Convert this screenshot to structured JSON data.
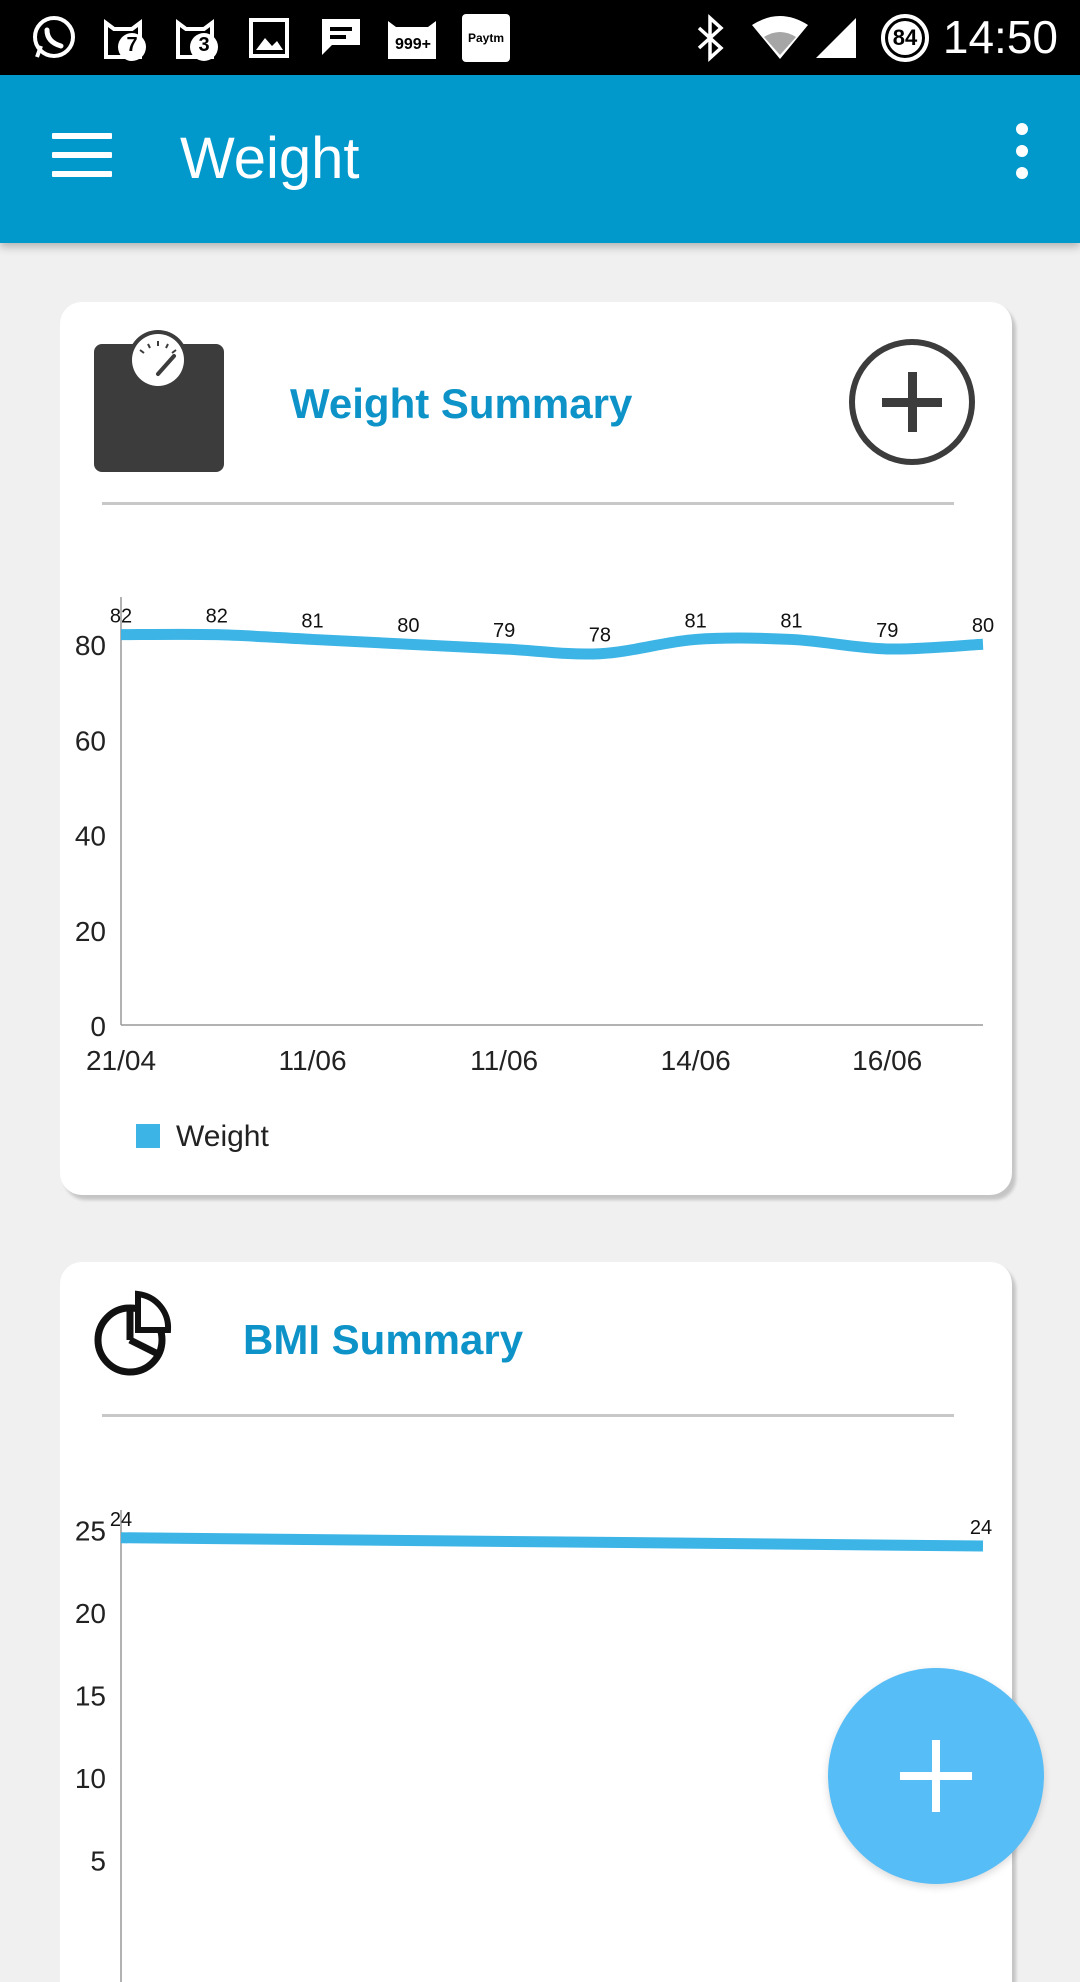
{
  "status_bar": {
    "time": "14:50",
    "notification_badges": [
      "7",
      "3",
      "999+"
    ],
    "paytm_label": "Paytm",
    "battery_level": "84",
    "icons": [
      "whatsapp-icon",
      "cat-app-icon",
      "cat-app-icon",
      "gallery-icon",
      "message-icon",
      "cat-app-icon",
      "paytm-icon",
      "bluetooth-icon",
      "wifi-icon",
      "signal-icon",
      "battery-icon"
    ]
  },
  "app_bar": {
    "title": "Weight",
    "icons": [
      "menu-icon",
      "overflow-menu-icon"
    ]
  },
  "weight_card": {
    "title": "Weight Summary",
    "icons": [
      "weighing-scale-icon",
      "add-circle-icon"
    ],
    "legend": "Weight",
    "series_color": "#3cb4e6"
  },
  "bmi_card": {
    "title": "BMI Summary",
    "icons": [
      "pie-chart-icon"
    ]
  },
  "fab": {
    "icon": "plus-icon",
    "color": "#57bdf6"
  },
  "chart_data": [
    {
      "type": "line",
      "x": [
        "21/04",
        "",
        "11/06",
        "",
        "11/06",
        "",
        "14/06",
        "",
        "16/06",
        ""
      ],
      "x_tick_labels": [
        "21/04",
        "11/06",
        "11/06",
        "14/06",
        "16/06"
      ],
      "series": [
        {
          "name": "Weight",
          "values": [
            82,
            82,
            81,
            80,
            79,
            78,
            81,
            81,
            79,
            80
          ],
          "color": "#3cb4e6"
        }
      ],
      "data_labels": [
        "82",
        "82",
        "81",
        "80",
        "79",
        "78",
        "81",
        "81",
        "79",
        "80"
      ],
      "y_ticks": [
        "0",
        "20",
        "40",
        "60",
        "80"
      ],
      "ylim": [
        0,
        90
      ],
      "grid": false,
      "legend": "bottom-left"
    },
    {
      "type": "line",
      "series": [
        {
          "values": [
            24.5,
            24
          ],
          "color": "#3cb4e6"
        }
      ],
      "data_labels": [
        "24",
        "24"
      ],
      "y_ticks": [
        "5",
        "10",
        "15",
        "20",
        "25"
      ],
      "ylim": [
        0,
        27
      ],
      "grid": false
    }
  ]
}
